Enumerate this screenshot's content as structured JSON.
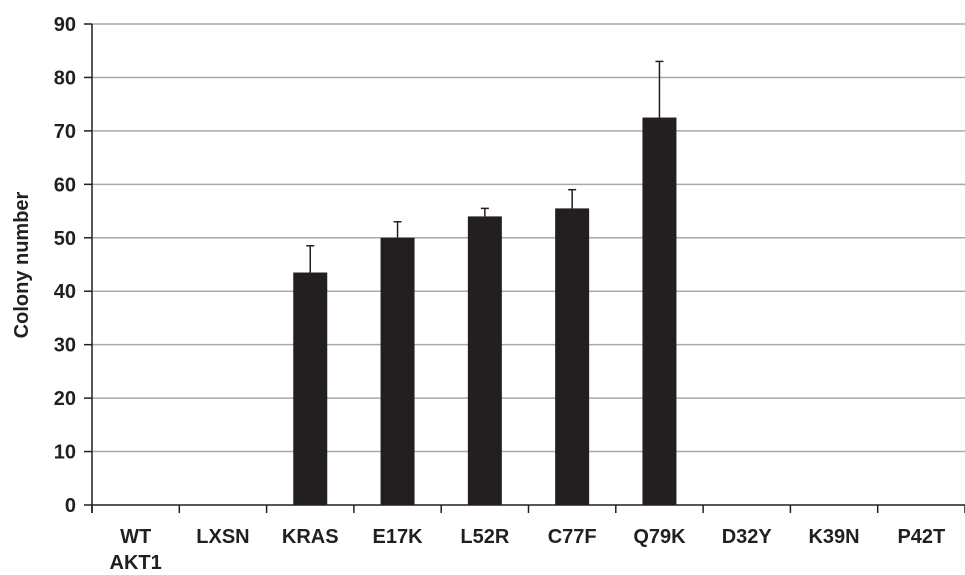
{
  "chart_data": {
    "type": "bar",
    "title": "",
    "xlabel": "",
    "ylabel": "Colony number",
    "ylim": [
      0,
      90
    ],
    "yticks": [
      "0",
      "10",
      "20",
      "30",
      "40",
      "50",
      "60",
      "70",
      "80",
      "90"
    ],
    "grid": true,
    "categories": [
      [
        "WT",
        "AKT1"
      ],
      [
        "LXSN"
      ],
      [
        "KRAS"
      ],
      [
        "E17K"
      ],
      [
        "L52R"
      ],
      [
        "C77F"
      ],
      [
        "Q79K"
      ],
      [
        "D32Y"
      ],
      [
        "K39N"
      ],
      [
        "P42T"
      ]
    ],
    "values": [
      0,
      0,
      43.5,
      50,
      54,
      55.5,
      72.5,
      0,
      0,
      0
    ],
    "errors": [
      0,
      0,
      5,
      3,
      1.5,
      3.5,
      10.5,
      0,
      0,
      0
    ],
    "colors": {
      "bar": "#231f20",
      "grid": "#a7a9ac",
      "axis": "#231f20",
      "text": "#231f20"
    }
  }
}
